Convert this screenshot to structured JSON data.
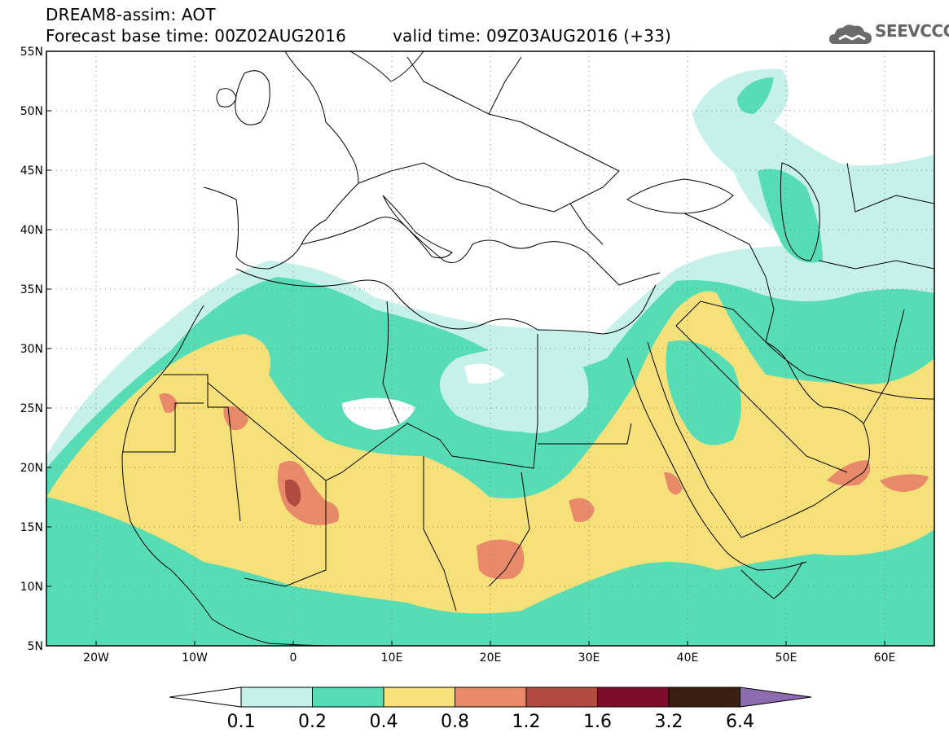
{
  "header": {
    "line1": "DREAM8-assim: AOT",
    "base_time": "Forecast base time: 00Z02AUG2016",
    "valid_time": "valid time: 09Z03AUG2016 (+33)",
    "logo_text": "SEEVCCC",
    "logo_icon": "cloud-icon"
  },
  "map": {
    "lat_labels": [
      "55N",
      "50N",
      "45N",
      "40N",
      "35N",
      "30N",
      "25N",
      "20N",
      "15N",
      "10N",
      "5N"
    ],
    "lon_labels": [
      "20W",
      "10W",
      "0",
      "10E",
      "20E",
      "30E",
      "40E",
      "50E",
      "60E"
    ],
    "colors": {
      "c01": "#c6f1ea",
      "c02": "#56ddb6",
      "c04": "#f6e07a",
      "c08": "#e8896a",
      "c12": "#b24b3f",
      "c16": "#7e0d2b",
      "c32": "#3b2012",
      "c64": "#8e6ab1",
      "border": "#000000"
    }
  },
  "colorbar": {
    "labels": [
      "0.1",
      "0.2",
      "0.4",
      "0.8",
      "1.2",
      "1.6",
      "3.2",
      "6.4"
    ],
    "colors": [
      "#c6f1ea",
      "#56ddb6",
      "#f6e07a",
      "#e8896a",
      "#b24b3f",
      "#7e0d2b",
      "#3b2012"
    ],
    "over_color": "#8e6ab1",
    "under_color": "#ffffff"
  }
}
